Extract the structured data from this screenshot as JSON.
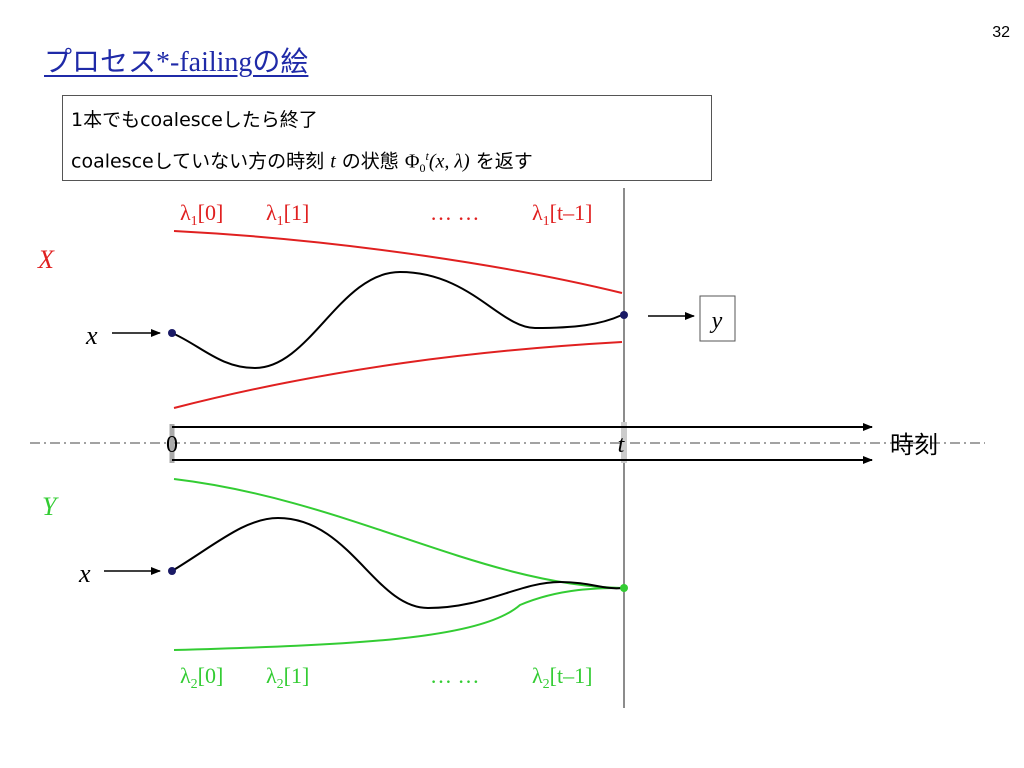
{
  "slide_number": "32",
  "title": {
    "text": "プロセス*-failingの絵"
  },
  "info": {
    "line1": "1本でもcoalesceしたら終了",
    "line2_prefix": "coalesceしていない方の時刻 ",
    "line2_var_t": "t",
    "line2_mid": " の状態 ",
    "line2_phi": "Φ",
    "line2_phi_sub": "0",
    "line2_phi_sup": "t",
    "line2_args": "(x, λ)",
    "line2_suffix": " を返す"
  },
  "diagram": {
    "label_X": "X",
    "label_Y": "Y",
    "input_x_top": "x",
    "input_x_bottom": "x",
    "output_y": "y",
    "axis_zero": "0",
    "axis_t": "t",
    "axis_label": "時刻",
    "top_lambdas": [
      {
        "base": "λ",
        "sub": "1",
        "idx": "[0]"
      },
      {
        "base": "λ",
        "sub": "1",
        "idx": "[1]"
      },
      {
        "base": "… …",
        "sub": "",
        "idx": ""
      },
      {
        "base": "λ",
        "sub": "1",
        "idx": "[t–1]"
      }
    ],
    "bottom_lambdas": [
      {
        "base": "λ",
        "sub": "2",
        "idx": "[0]"
      },
      {
        "base": "λ",
        "sub": "2",
        "idx": "[1]"
      },
      {
        "base": "… …",
        "sub": "",
        "idx": ""
      },
      {
        "base": "λ",
        "sub": "2",
        "idx": "[t–1]"
      }
    ]
  },
  "colors": {
    "title": "#1f2aa8",
    "red": "#e02020",
    "green": "#33cc33",
    "dot": "#1a1a66"
  }
}
